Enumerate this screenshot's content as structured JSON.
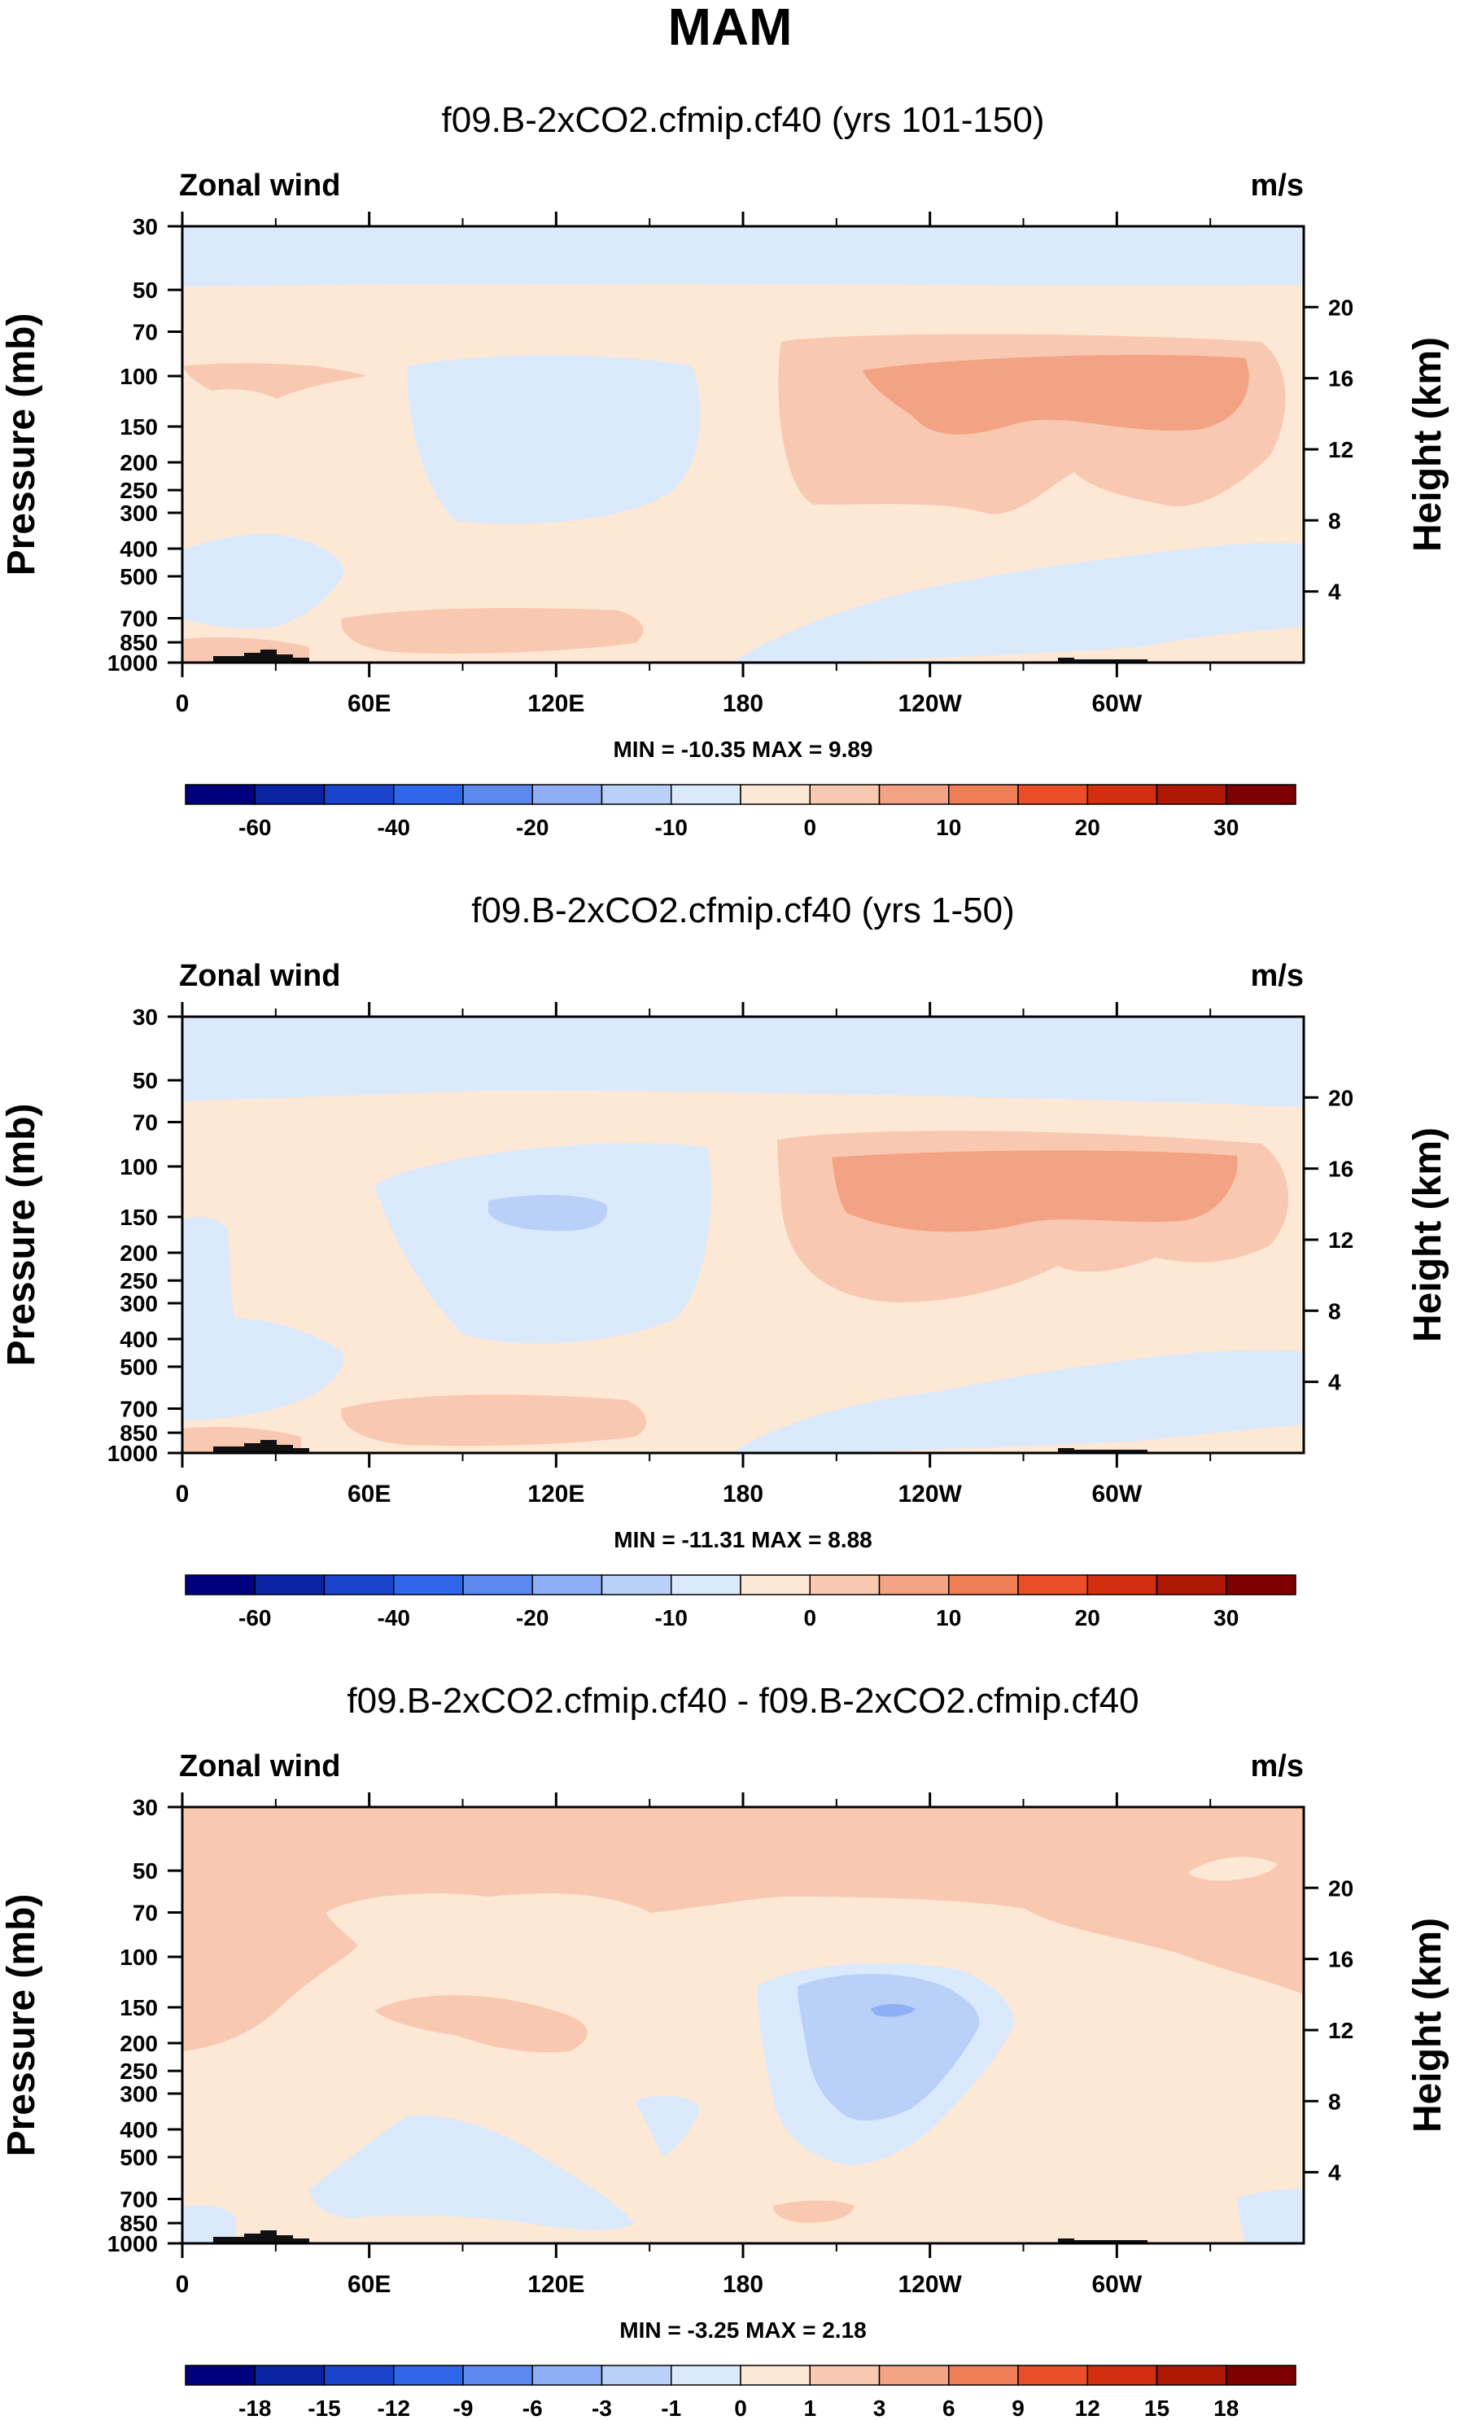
{
  "page_title": "MAM",
  "chart_data": [
    {
      "type": "heatmap",
      "title": "f09.B-2xCO2.cfmip.cf40 (yrs 101-150)",
      "left_label": "Zonal wind",
      "right_label": "m/s",
      "xlabel": "",
      "ylabel": "Pressure (mb)",
      "y2label": "Height (km)",
      "x_ticks": [
        "0",
        "60E",
        "120E",
        "180",
        "120W",
        "60W"
      ],
      "y_ticks": [
        "30",
        "50",
        "70",
        "100",
        "150",
        "200",
        "250",
        "300",
        "400",
        "500",
        "700",
        "850",
        "1000"
      ],
      "y2_ticks": [
        "20",
        "16",
        "12",
        "8",
        "4"
      ],
      "stats": "MIN = -10.35  MAX =  9.89",
      "colorbar": {
        "labels": [
          "-60",
          "-40",
          "-20",
          "-10",
          "0",
          "10",
          "20",
          "30"
        ],
        "colors": [
          "#00007f",
          "#0a22a4",
          "#1a44cc",
          "#2f66ea",
          "#5c89f0",
          "#8eaef5",
          "#b9d0f8",
          "#daeafc",
          "#fde7d5",
          "#f9c8b0",
          "#f3a383",
          "#ef7d55",
          "#ea4e27",
          "#d22e0f",
          "#b01806",
          "#7f0000"
        ]
      },
      "contours": {
        "bg": "#fde7d5",
        "c_neg10": "#daeafc",
        "c_neg20": "#b9d0f8",
        "c_pos10": "#f9c8b0",
        "c_pos20": "#f3a383",
        "terrain": "#111111"
      }
    },
    {
      "type": "heatmap",
      "title": "f09.B-2xCO2.cfmip.cf40 (yrs 1-50)",
      "left_label": "Zonal wind",
      "right_label": "m/s",
      "xlabel": "",
      "ylabel": "Pressure (mb)",
      "y2label": "Height (km)",
      "x_ticks": [
        "0",
        "60E",
        "120E",
        "180",
        "120W",
        "60W"
      ],
      "y_ticks": [
        "30",
        "50",
        "70",
        "100",
        "150",
        "200",
        "250",
        "300",
        "400",
        "500",
        "700",
        "850",
        "1000"
      ],
      "y2_ticks": [
        "20",
        "16",
        "12",
        "8",
        "4"
      ],
      "stats": "MIN = -11.31  MAX =  8.88",
      "colorbar": {
        "labels": [
          "-60",
          "-40",
          "-20",
          "-10",
          "0",
          "10",
          "20",
          "30"
        ],
        "colors": [
          "#00007f",
          "#0a22a4",
          "#1a44cc",
          "#2f66ea",
          "#5c89f0",
          "#8eaef5",
          "#b9d0f8",
          "#daeafc",
          "#fde7d5",
          "#f9c8b0",
          "#f3a383",
          "#ef7d55",
          "#ea4e27",
          "#d22e0f",
          "#b01806",
          "#7f0000"
        ]
      },
      "contours": {
        "bg": "#fde7d5",
        "c_neg10": "#daeafc",
        "c_neg20": "#b9d0f8",
        "c_pos10": "#f9c8b0",
        "c_pos20": "#f3a383",
        "terrain": "#111111"
      }
    },
    {
      "type": "heatmap",
      "title": "f09.B-2xCO2.cfmip.cf40 - f09.B-2xCO2.cfmip.cf40",
      "left_label": "Zonal wind",
      "right_label": "m/s",
      "xlabel": "",
      "ylabel": "Pressure (mb)",
      "y2label": "Height (km)",
      "x_ticks": [
        "0",
        "60E",
        "120E",
        "180",
        "120W",
        "60W"
      ],
      "y_ticks": [
        "30",
        "50",
        "70",
        "100",
        "150",
        "200",
        "250",
        "300",
        "400",
        "500",
        "700",
        "850",
        "1000"
      ],
      "y2_ticks": [
        "20",
        "16",
        "12",
        "8",
        "4"
      ],
      "stats": "MIN =  -3.25  MAX =   2.18",
      "colorbar": {
        "labels": [
          "-18",
          "-15",
          "-12",
          "-9",
          "-6",
          "-3",
          "-1",
          "0",
          "1",
          "3",
          "6",
          "9",
          "12",
          "15",
          "18"
        ],
        "colors": [
          "#00007f",
          "#0a22a4",
          "#1a44cc",
          "#2f66ea",
          "#5c89f0",
          "#8eaef5",
          "#b9d0f8",
          "#daeafc",
          "#fde7d5",
          "#f9c8b0",
          "#f3a383",
          "#ef7d55",
          "#ea4e27",
          "#d22e0f",
          "#b01806",
          "#7f0000"
        ]
      },
      "contours": {
        "bg": "#fde7d5",
        "c_neg1": "#daeafc",
        "c_neg3": "#b9d0f8",
        "c_neg6": "#8eaef5",
        "c_pos1": "#f9c8b0",
        "terrain": "#111111"
      }
    }
  ]
}
